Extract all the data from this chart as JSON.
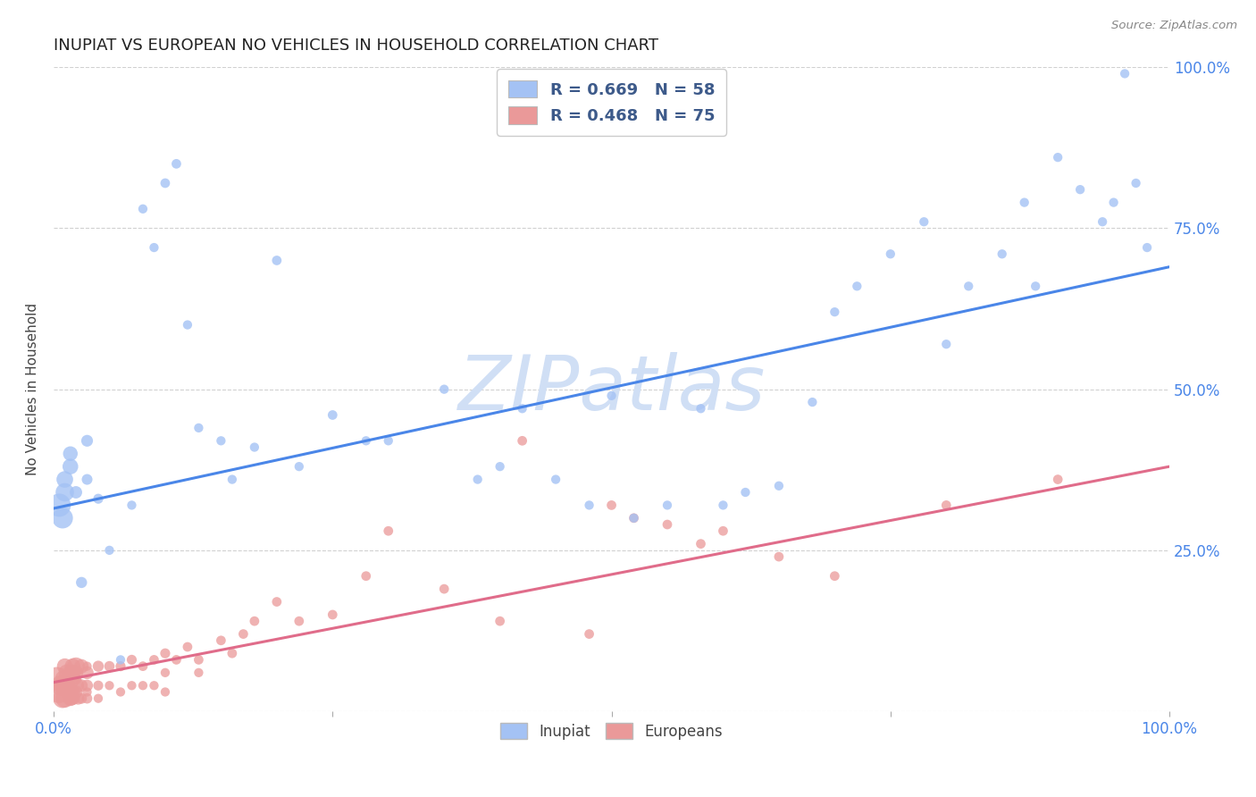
{
  "title": "INUPIAT VS EUROPEAN NO VEHICLES IN HOUSEHOLD CORRELATION CHART",
  "source": "Source: ZipAtlas.com",
  "ylabel": "No Vehicles in Household",
  "xlim": [
    0,
    1
  ],
  "ylim": [
    0,
    1
  ],
  "inupiat_color": "#a4c2f4",
  "european_color": "#ea9999",
  "line_inupiat_color": "#4a86e8",
  "line_european_color": "#e06c8a",
  "watermark_color": "#d0dff5",
  "watermark_text": "ZIPatlas",
  "legend_label_inupiat": "R = 0.669   N = 58",
  "legend_label_european": "R = 0.468   N = 75",
  "legend_text_color": "#3d5a8a",
  "tick_color": "#4a86e8",
  "inupiat_line_intercept": 0.315,
  "inupiat_line_slope": 0.375,
  "european_line_intercept": 0.045,
  "european_line_slope": 0.335,
  "inupiat_x": [
    0.005,
    0.008,
    0.01,
    0.01,
    0.015,
    0.015,
    0.02,
    0.025,
    0.03,
    0.03,
    0.04,
    0.05,
    0.06,
    0.07,
    0.08,
    0.09,
    0.1,
    0.11,
    0.12,
    0.13,
    0.15,
    0.16,
    0.18,
    0.2,
    0.22,
    0.25,
    0.28,
    0.3,
    0.35,
    0.38,
    0.4,
    0.42,
    0.45,
    0.48,
    0.5,
    0.52,
    0.55,
    0.58,
    0.6,
    0.62,
    0.65,
    0.68,
    0.7,
    0.72,
    0.75,
    0.78,
    0.8,
    0.82,
    0.85,
    0.87,
    0.88,
    0.9,
    0.92,
    0.94,
    0.95,
    0.96,
    0.97,
    0.98
  ],
  "inupiat_y": [
    0.32,
    0.3,
    0.34,
    0.36,
    0.38,
    0.4,
    0.34,
    0.2,
    0.42,
    0.36,
    0.33,
    0.25,
    0.08,
    0.32,
    0.78,
    0.72,
    0.82,
    0.85,
    0.6,
    0.44,
    0.42,
    0.36,
    0.41,
    0.7,
    0.38,
    0.46,
    0.42,
    0.42,
    0.5,
    0.36,
    0.38,
    0.47,
    0.36,
    0.32,
    0.49,
    0.3,
    0.32,
    0.47,
    0.32,
    0.34,
    0.35,
    0.48,
    0.62,
    0.66,
    0.71,
    0.76,
    0.57,
    0.66,
    0.71,
    0.79,
    0.66,
    0.86,
    0.81,
    0.76,
    0.79,
    0.99,
    0.82,
    0.72
  ],
  "inupiat_sizes": [
    350,
    280,
    220,
    180,
    160,
    140,
    100,
    80,
    90,
    75,
    65,
    55,
    55,
    55,
    55,
    55,
    60,
    60,
    55,
    55,
    55,
    55,
    55,
    60,
    55,
    60,
    55,
    55,
    55,
    55,
    55,
    55,
    55,
    55,
    55,
    55,
    55,
    55,
    55,
    55,
    55,
    55,
    55,
    55,
    55,
    55,
    55,
    55,
    55,
    55,
    55,
    55,
    55,
    55,
    55,
    55,
    55,
    55
  ],
  "european_x": [
    0.003,
    0.005,
    0.007,
    0.008,
    0.009,
    0.01,
    0.01,
    0.01,
    0.012,
    0.013,
    0.015,
    0.015,
    0.015,
    0.016,
    0.016,
    0.017,
    0.017,
    0.018,
    0.018,
    0.02,
    0.02,
    0.02,
    0.02,
    0.02,
    0.022,
    0.025,
    0.025,
    0.025,
    0.03,
    0.03,
    0.03,
    0.03,
    0.03,
    0.04,
    0.04,
    0.04,
    0.05,
    0.05,
    0.06,
    0.06,
    0.07,
    0.07,
    0.08,
    0.08,
    0.09,
    0.09,
    0.1,
    0.1,
    0.1,
    0.11,
    0.12,
    0.13,
    0.13,
    0.15,
    0.16,
    0.17,
    0.18,
    0.2,
    0.22,
    0.25,
    0.28,
    0.3,
    0.35,
    0.4,
    0.42,
    0.48,
    0.5,
    0.52,
    0.55,
    0.58,
    0.6,
    0.65,
    0.7,
    0.8,
    0.9
  ],
  "european_y": [
    0.05,
    0.03,
    0.04,
    0.02,
    0.05,
    0.04,
    0.02,
    0.07,
    0.06,
    0.03,
    0.05,
    0.03,
    0.02,
    0.06,
    0.02,
    0.07,
    0.03,
    0.06,
    0.02,
    0.07,
    0.04,
    0.06,
    0.03,
    0.05,
    0.02,
    0.07,
    0.04,
    0.02,
    0.06,
    0.04,
    0.02,
    0.07,
    0.03,
    0.07,
    0.04,
    0.02,
    0.07,
    0.04,
    0.07,
    0.03,
    0.08,
    0.04,
    0.07,
    0.04,
    0.08,
    0.04,
    0.09,
    0.06,
    0.03,
    0.08,
    0.1,
    0.08,
    0.06,
    0.11,
    0.09,
    0.12,
    0.14,
    0.17,
    0.14,
    0.15,
    0.21,
    0.28,
    0.19,
    0.14,
    0.42,
    0.12,
    0.32,
    0.3,
    0.29,
    0.26,
    0.28,
    0.24,
    0.21,
    0.32,
    0.36
  ],
  "european_sizes": [
    380,
    320,
    280,
    240,
    200,
    280,
    220,
    160,
    180,
    150,
    230,
    190,
    150,
    180,
    130,
    160,
    110,
    150,
    100,
    200,
    170,
    140,
    110,
    80,
    100,
    130,
    100,
    75,
    110,
    90,
    70,
    55,
    55,
    80,
    65,
    55,
    70,
    55,
    65,
    55,
    65,
    55,
    60,
    55,
    60,
    55,
    65,
    55,
    55,
    60,
    60,
    60,
    55,
    60,
    60,
    60,
    60,
    60,
    60,
    60,
    60,
    60,
    60,
    60,
    60,
    60,
    60,
    60,
    60,
    60,
    60,
    60,
    60,
    60,
    60
  ]
}
